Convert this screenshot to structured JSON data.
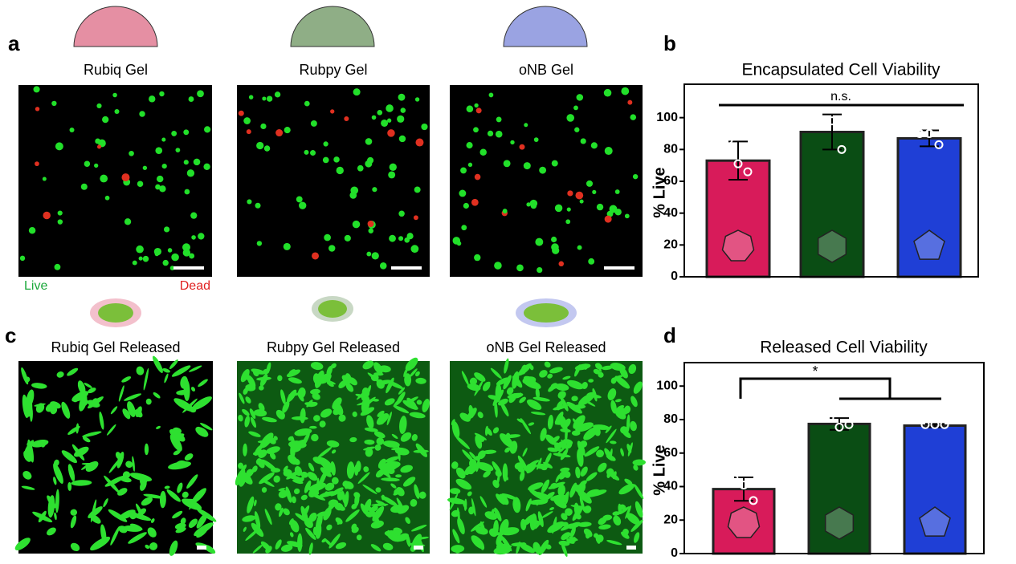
{
  "panels": {
    "a": "a",
    "b": "b",
    "c": "c",
    "d": "d"
  },
  "encapsulated_labels": [
    "Rubiq Gel",
    "Rubpy Gel",
    "oNB Gel"
  ],
  "live_label": "Live",
  "dead_label": "Dead",
  "released_labels": [
    "Rubiq Gel Released",
    "Rubpy Gel Released",
    "oNB Gel Released"
  ],
  "chart_data": [
    {
      "type": "bar",
      "title": "Encapsulated Cell Viability",
      "y_label": "% Live",
      "values": [
        73,
        91,
        87
      ],
      "errors": [
        12,
        11,
        5
      ],
      "points": [
        [
          86,
          71,
          66
        ],
        [
          98.5,
          98,
          80
        ],
        [
          90,
          90,
          83
        ]
      ],
      "colors": [
        "#d81b5a",
        "#0a4d14",
        "#1f3fd6"
      ],
      "ylim": [
        0,
        121
      ],
      "yticks": [
        0,
        20,
        40,
        60,
        80,
        100
      ],
      "annotation": "n.s."
    },
    {
      "type": "bar",
      "title": "Released Cell Viability",
      "y_label": "% Live",
      "values": [
        38.5,
        77.4,
        76.4
      ],
      "errors": [
        7,
        3.5,
        1
      ],
      "points": [
        [
          44.7,
          40.9,
          31.7
        ],
        [
          81,
          75.5,
          77
        ],
        [
          77,
          77,
          77
        ]
      ],
      "colors": [
        "#d81b5a",
        "#0a4d14",
        "#1f3fd6"
      ],
      "ylim": [
        0,
        114
      ],
      "yticks": [
        0,
        20,
        40,
        60,
        80,
        100
      ],
      "annotation": "*"
    }
  ]
}
